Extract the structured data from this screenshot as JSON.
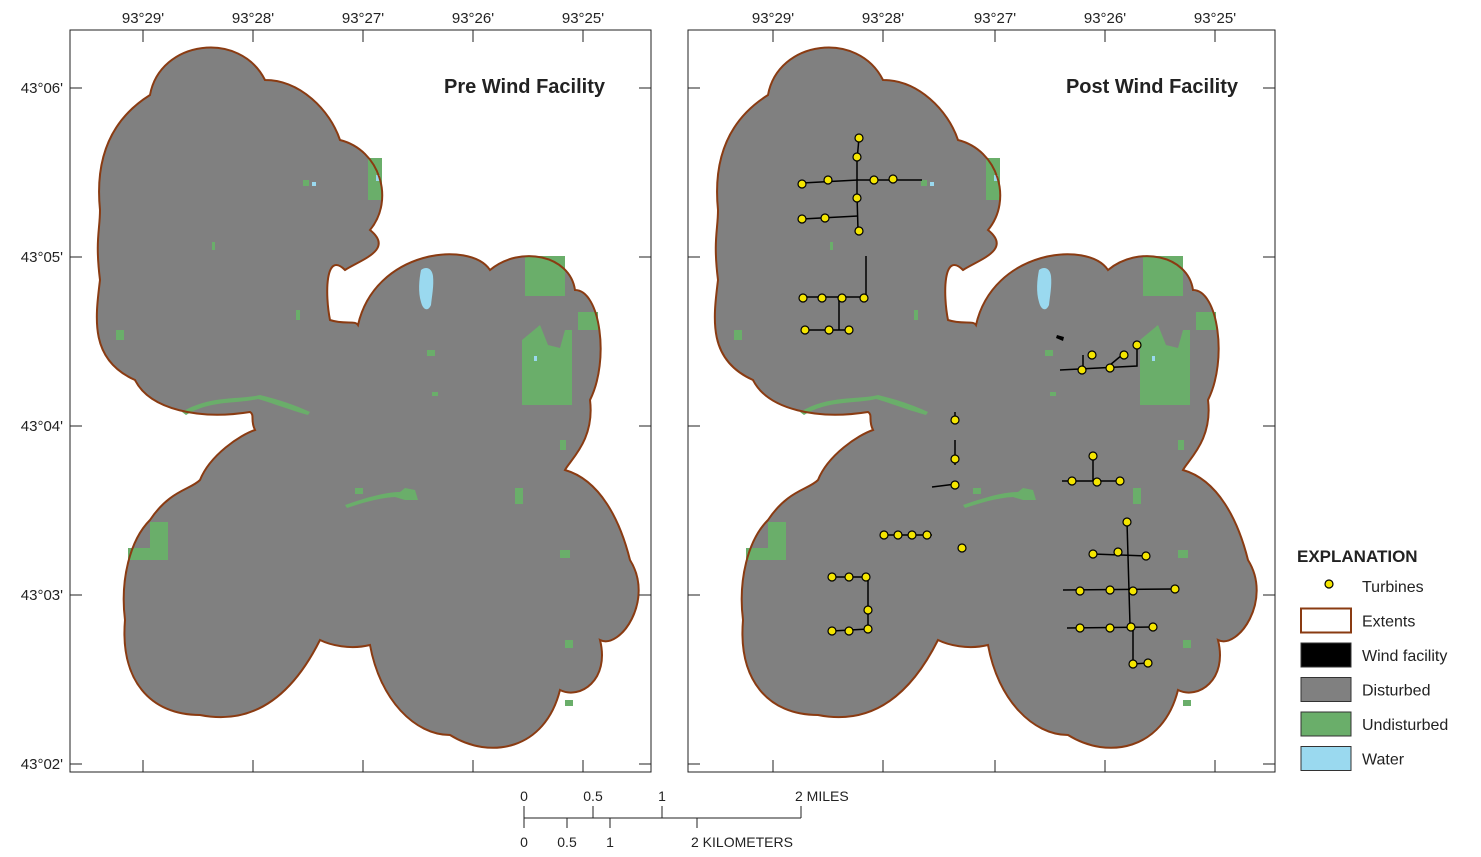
{
  "panels": [
    {
      "id": "pre",
      "title": "Pre Wind Facility",
      "show_turbines": false
    },
    {
      "id": "post",
      "title": "Post Wind Facility",
      "show_turbines": true
    }
  ],
  "axes": {
    "longitude_ticks": [
      "93°29'",
      "93°28'",
      "93°27'",
      "93°26'",
      "93°25'"
    ],
    "latitude_ticks": [
      "43°06'",
      "43°05'",
      "43°04'",
      "43°03'",
      "43°02'"
    ]
  },
  "scale_bar": {
    "miles_labels": [
      "0",
      "0.5",
      "1",
      "2 MILES"
    ],
    "kilometers_labels": [
      "0",
      "0.5",
      "1",
      "2 KILOMETERS"
    ]
  },
  "legend": {
    "title": "EXPLANATION",
    "items": [
      {
        "label": "Turbines",
        "symbol": "turbine",
        "color": "#f5e600"
      },
      {
        "label": "Extents",
        "symbol": "extent",
        "color": "#8a3b12"
      },
      {
        "label": "Wind facility",
        "symbol": "fill",
        "color": "#000000"
      },
      {
        "label": "Disturbed",
        "symbol": "fill",
        "color": "#808080"
      },
      {
        "label": "Undisturbed",
        "symbol": "fill",
        "color": "#6aae6a"
      },
      {
        "label": "Water",
        "symbol": "fill",
        "color": "#9ad9ef"
      }
    ]
  },
  "colors": {
    "disturbed": "#808080",
    "undisturbed": "#6aae6a",
    "water": "#9ad9ef",
    "extent": "#8a3b12",
    "turbine": "#f5e600",
    "wind_facility": "#000000",
    "frame": "#222222"
  }
}
